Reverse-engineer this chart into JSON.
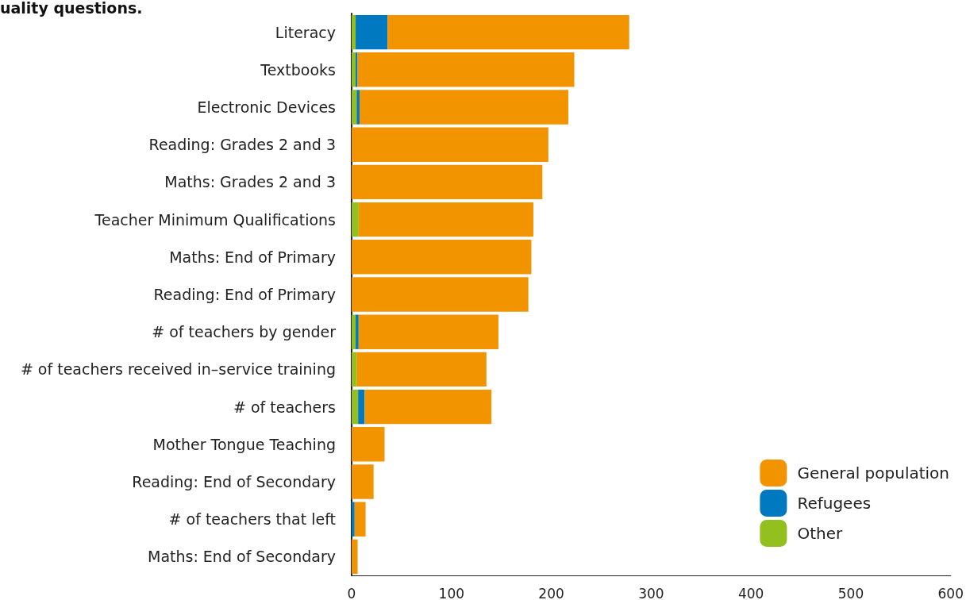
{
  "chart_data": {
    "type": "bar",
    "orientation": "horizontal",
    "stacked": true,
    "title": "uality questions.",
    "categories": [
      "Literacy",
      "Textbooks",
      "Electronic Devices",
      "Reading: Grades 2 and 3",
      "Maths: Grades 2 and 3",
      "Teacher Minimum Qualifications",
      "Maths: End of Primary",
      "Reading: End of Primary",
      "# of teachers by gender",
      "# of teachers received in–service training",
      "# of teachers",
      "Mother Tongue Teaching",
      "Reading: End of Secondary",
      "# of teachers that left",
      "Maths: End of Secondary"
    ],
    "series": [
      {
        "name": "Other",
        "color": "#93c01f",
        "values": [
          4,
          4,
          5,
          null,
          null,
          7,
          null,
          null,
          4,
          5,
          6.5,
          null,
          null,
          null,
          null
        ]
      },
      {
        "name": "Refugees",
        "color": "#0079c1",
        "values": [
          32,
          2,
          3,
          null,
          null,
          null,
          null,
          null,
          3,
          null,
          6.5,
          null,
          null,
          3,
          null
        ]
      },
      {
        "name": "General population",
        "color": "#f29400",
        "values": [
          242,
          217,
          209,
          197,
          191,
          175,
          180,
          177,
          140,
          130,
          127,
          33,
          22,
          11,
          6
        ]
      }
    ],
    "xlim": [
      0,
      600
    ],
    "xticks": [
      0,
      100,
      200,
      300,
      400,
      500,
      600
    ],
    "grid": false,
    "legend": "bottom right"
  }
}
